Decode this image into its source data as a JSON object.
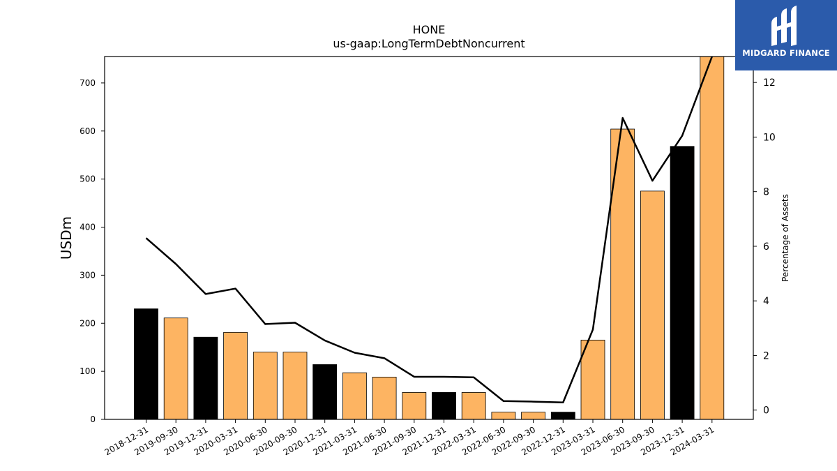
{
  "brand": {
    "name": "MIDGARD FINANCE",
    "bg": "#2b5bab"
  },
  "chart_data": {
    "type": "bar",
    "title": "HONE",
    "subtitle": "us-gaap:LongTermDebtNoncurrent",
    "ylabel": "USDm",
    "ylabel_right": "Percentage of Assets",
    "categories": [
      "2018-12-31",
      "2019-09-30",
      "2019-12-31",
      "2020-03-31",
      "2020-06-30",
      "2020-09-30",
      "2020-12-31",
      "2021-03-31",
      "2021-06-30",
      "2021-09-30",
      "2021-12-31",
      "2022-03-31",
      "2022-06-30",
      "2022-09-30",
      "2022-12-31",
      "2023-03-31",
      "2023-06-30",
      "2023-09-30",
      "2023-12-31",
      "2024-03-31"
    ],
    "series": [
      {
        "type": "bar",
        "values": [
          230,
          211,
          171,
          181,
          140,
          140,
          114,
          97,
          88,
          56,
          56,
          56,
          15,
          15,
          15,
          165,
          604,
          475,
          568,
          755
        ],
        "colors": [
          "#000000",
          "#fdb462",
          "#000000",
          "#fdb462",
          "#fdb462",
          "#fdb462",
          "#000000",
          "#fdb462",
          "#fdb462",
          "#fdb462",
          "#000000",
          "#fdb462",
          "#fdb462",
          "#fdb462",
          "#000000",
          "#fdb462",
          "#fdb462",
          "#fdb462",
          "#000000",
          "#fdb462"
        ]
      },
      {
        "type": "line",
        "axis": "right",
        "color": "#000000",
        "values": [
          6.3,
          5.35,
          4.25,
          4.45,
          3.15,
          3.2,
          2.55,
          2.1,
          1.9,
          1.22,
          1.22,
          1.2,
          0.33,
          0.31,
          0.28,
          2.95,
          10.7,
          8.4,
          10.05,
          12.95
        ]
      }
    ],
    "ylim": [
      0,
      755
    ],
    "ylim_right": [
      -0.34,
      12.95
    ],
    "yticks": [
      0,
      100,
      200,
      300,
      400,
      500,
      600,
      700
    ],
    "yticks_right": [
      0,
      2,
      4,
      6,
      8,
      10,
      12
    ],
    "grid": false,
    "legend": "none"
  }
}
